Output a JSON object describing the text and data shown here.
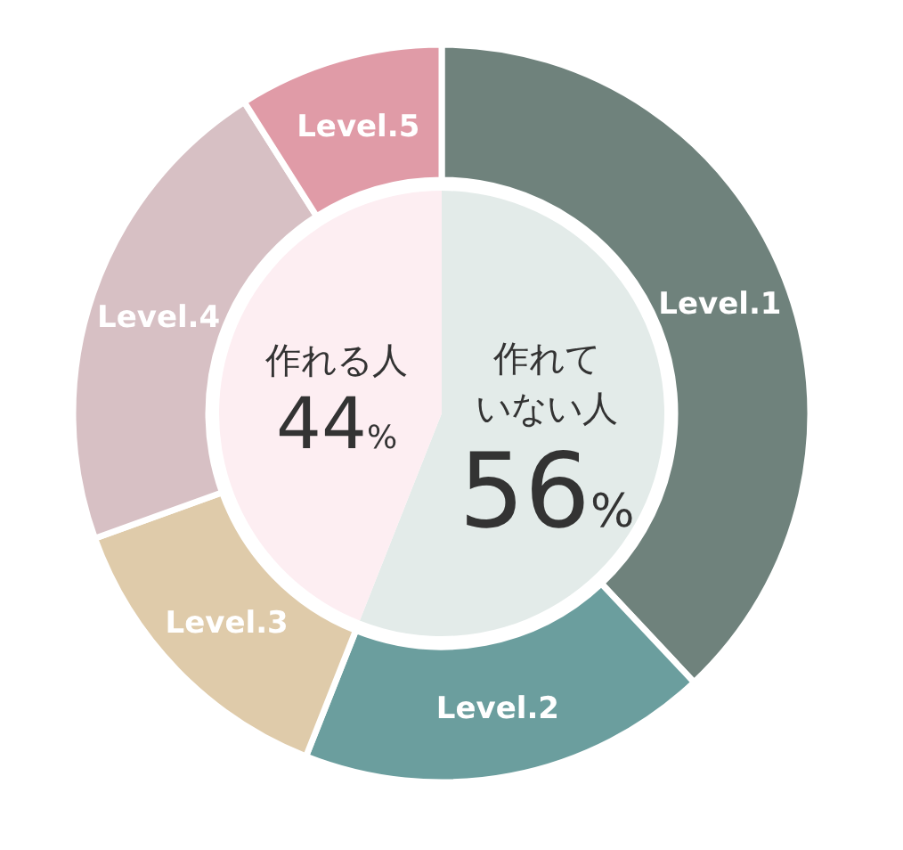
{
  "chart_data": [
    {
      "type": "pie",
      "categories": [
        "作れていない人",
        "作れる人"
      ],
      "values": [
        56,
        44
      ],
      "colors": [
        "#e3ebe9",
        "#fdeef2"
      ],
      "value_labels": [
        "56%",
        "44%"
      ]
    },
    {
      "type": "donut",
      "categories": [
        "Level.1",
        "Level.2",
        "Level.3",
        "Level.4",
        "Level.5"
      ],
      "values": [
        38,
        18,
        13.5,
        21.5,
        9
      ],
      "colors": [
        "#6f827c",
        "#6b9e9e",
        "#dfcbaa",
        "#d7c0c4",
        "#e09ba7"
      ]
    }
  ]
}
